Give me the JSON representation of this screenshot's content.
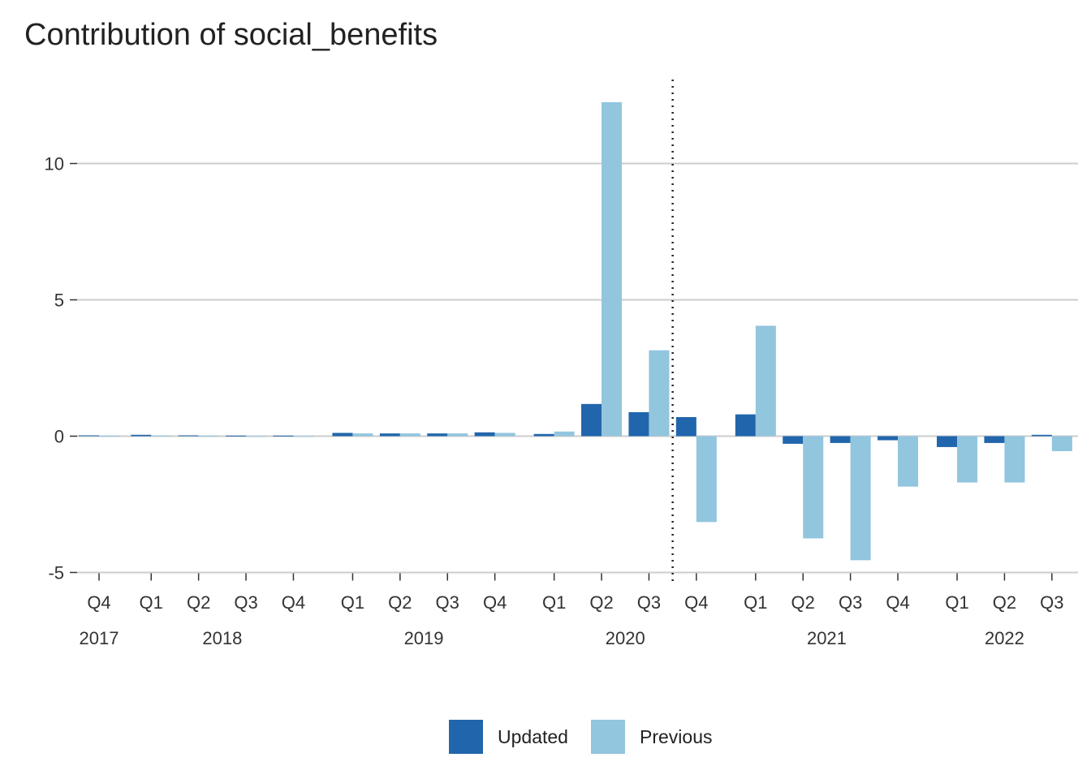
{
  "chart_data": {
    "type": "bar",
    "title": "Contribution of social_benefits",
    "xlabel": "",
    "ylabel": "",
    "ylim": [
      -5.5,
      13.0
    ],
    "y_ticks": [
      -5,
      0,
      5,
      10
    ],
    "y_tick_labels": [
      "-5",
      "0",
      "5",
      "10"
    ],
    "grid": true,
    "legend_position": "bottom",
    "categories": [
      "2017 Q4",
      "2018 Q1",
      "2018 Q2",
      "2018 Q3",
      "2018 Q4",
      "2019 Q1",
      "2019 Q2",
      "2019 Q3",
      "2019 Q4",
      "2020 Q1",
      "2020 Q2",
      "2020 Q3",
      "2020 Q4",
      "2021 Q1",
      "2021 Q2",
      "2021 Q3",
      "2021 Q4",
      "2022 Q1",
      "2022 Q2",
      "2022 Q3"
    ],
    "quarter_labels": [
      "Q4",
      "Q1",
      "Q2",
      "Q3",
      "Q4",
      "Q1",
      "Q2",
      "Q3",
      "Q4",
      "Q1",
      "Q2",
      "Q3",
      "Q4",
      "Q1",
      "Q2",
      "Q3",
      "Q4",
      "Q1",
      "Q2",
      "Q3"
    ],
    "year_labels": [
      {
        "label": "2017",
        "categories": [
          "2017 Q4"
        ]
      },
      {
        "label": "2018",
        "categories": [
          "2018 Q1",
          "2018 Q2",
          "2018 Q3",
          "2018 Q4"
        ]
      },
      {
        "label": "2019",
        "categories": [
          "2019 Q1",
          "2019 Q2",
          "2019 Q3",
          "2019 Q4"
        ]
      },
      {
        "label": "2020",
        "categories": [
          "2020 Q1",
          "2020 Q2",
          "2020 Q3",
          "2020 Q4"
        ]
      },
      {
        "label": "2021",
        "categories": [
          "2021 Q1",
          "2021 Q2",
          "2021 Q3",
          "2021 Q4"
        ]
      },
      {
        "label": "2022",
        "categories": [
          "2022 Q1",
          "2022 Q2",
          "2022 Q3"
        ]
      }
    ],
    "reference_line": {
      "style": "dotted",
      "between": [
        "2020 Q3",
        "2020 Q4"
      ]
    },
    "series": [
      {
        "name": "Updated",
        "color": "#2166ac",
        "values": [
          0.03,
          0.05,
          0.03,
          0.02,
          0.02,
          0.12,
          0.1,
          0.1,
          0.14,
          0.08,
          1.18,
          0.88,
          0.7,
          0.8,
          -0.28,
          -0.25,
          -0.15,
          -0.4,
          -0.25,
          0.05
        ]
      },
      {
        "name": "Previous",
        "color": "#92c5de",
        "values": [
          0.01,
          0.03,
          0.01,
          -0.03,
          -0.02,
          0.1,
          0.1,
          0.1,
          0.12,
          0.17,
          12.25,
          3.15,
          -3.15,
          4.05,
          -3.75,
          -4.55,
          -1.85,
          -1.7,
          -1.7,
          -0.55
        ]
      }
    ]
  }
}
